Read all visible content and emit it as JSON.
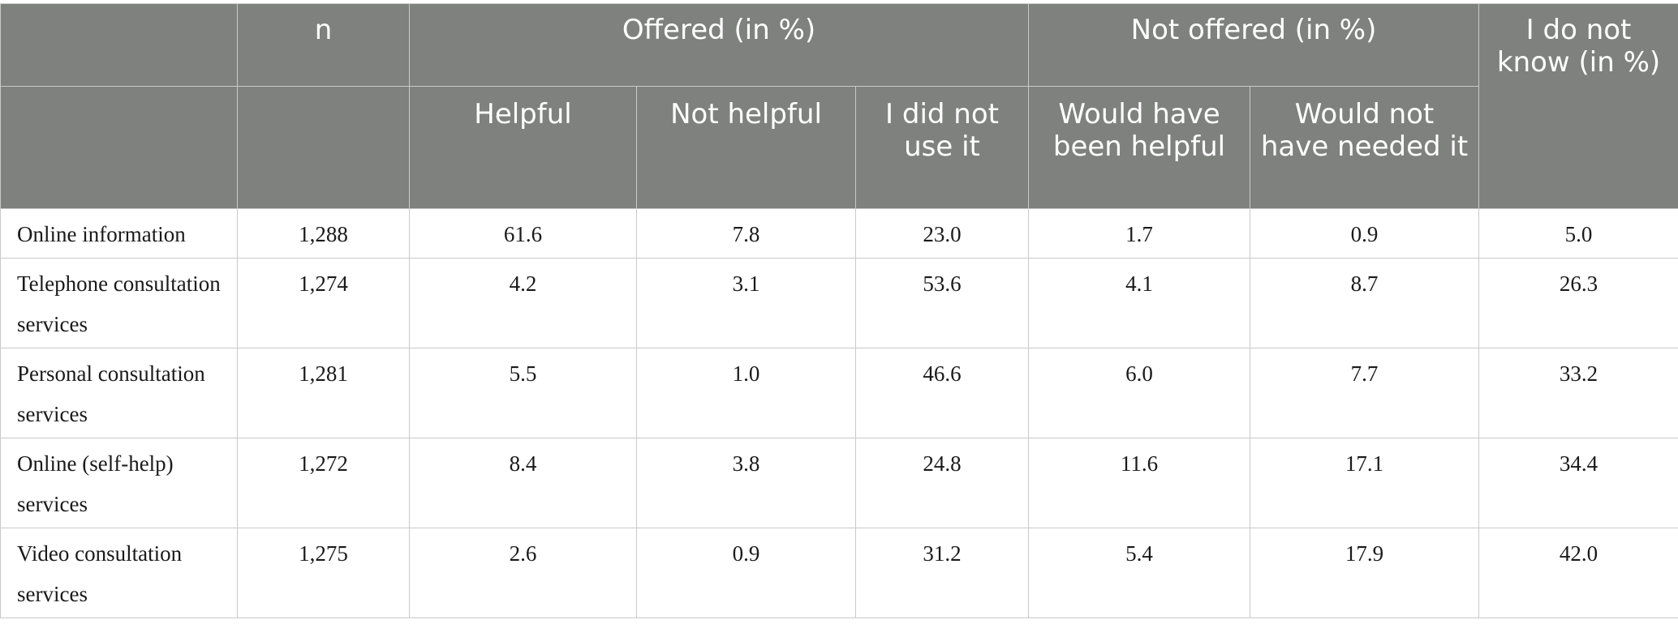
{
  "header": {
    "n": "n",
    "offered": "Offered (in %)",
    "not_offered": "Not offered (in %)",
    "dont_know": "I do not know (in %)",
    "sub": {
      "helpful": "Helpful",
      "not_helpful": "Not helpful",
      "did_not_use": "I did not use it",
      "would_have_been_helpful": "Would have been helpful",
      "would_not_have_needed": "Would not have needed it"
    }
  },
  "rows": [
    {
      "label": "Online information",
      "n": "1,288",
      "helpful": "61.6",
      "not_helpful": "7.8",
      "did_not_use": "23.0",
      "would_help": "1.7",
      "not_needed": "0.9",
      "dont_know": "5.0"
    },
    {
      "label": "Telephone consultation services",
      "n": "1,274",
      "helpful": "4.2",
      "not_helpful": "3.1",
      "did_not_use": "53.6",
      "would_help": "4.1",
      "not_needed": "8.7",
      "dont_know": "26.3"
    },
    {
      "label": "Personal consultation services",
      "n": "1,281",
      "helpful": "5.5",
      "not_helpful": "1.0",
      "did_not_use": "46.6",
      "would_help": "6.0",
      "not_needed": "7.7",
      "dont_know": "33.2"
    },
    {
      "label": "Online (self-help) services",
      "n": "1,272",
      "helpful": "8.4",
      "not_helpful": "3.8",
      "did_not_use": "24.8",
      "would_help": "11.6",
      "not_needed": "17.1",
      "dont_know": "34.4"
    },
    {
      "label": "Video consultation services",
      "n": "1,275",
      "helpful": "2.6",
      "not_helpful": "0.9",
      "did_not_use": "31.2",
      "would_help": "5.4",
      "not_needed": "17.9",
      "dont_know": "42.0"
    }
  ]
}
